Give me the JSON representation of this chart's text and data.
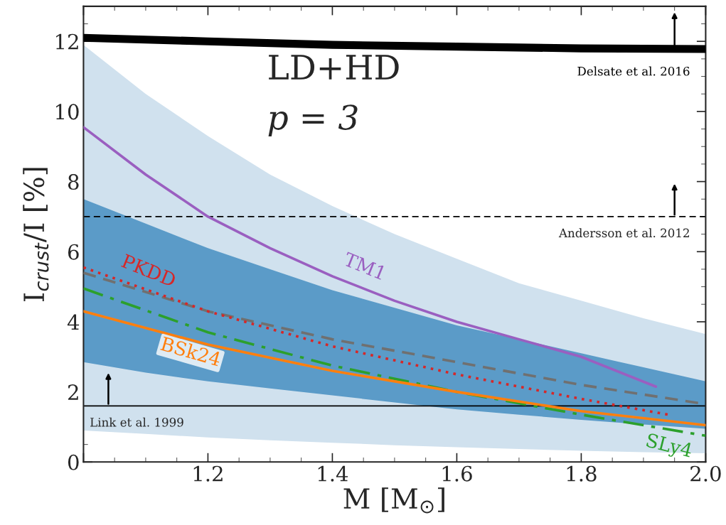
{
  "chart_data": {
    "type": "line",
    "xlabel": "M [M$_{⊙}$]",
    "ylabel": "I$_{crust}$/I [%]",
    "xlim": [
      1.0,
      2.0
    ],
    "xticks": [
      {
        "value": 1.0,
        "label": null
      },
      1.2,
      1.4,
      1.6,
      1.8,
      {
        "value": 2.0,
        "label": "2.0"
      }
    ],
    "ylim": [
      0,
      13
    ],
    "yticks": [
      0,
      2,
      4,
      6,
      8,
      10,
      12
    ],
    "grid": false,
    "legend": false,
    "series": [
      {
        "type": "area",
        "color": "#d0e1ee",
        "x": [
          1.0,
          1.1,
          1.2,
          1.3,
          1.4,
          1.5,
          1.6,
          1.7,
          1.8,
          1.9,
          2.0
        ],
        "values": [
          null,
          null,
          null,
          null,
          null,
          null,
          null,
          null,
          null,
          null,
          null
        ],
        "lower": [
          0.9,
          0.8,
          0.7,
          0.62,
          0.55,
          0.48,
          0.42,
          0.37,
          0.32,
          0.28,
          0.25
        ],
        "upper": [
          11.9,
          10.5,
          9.3,
          8.2,
          7.3,
          6.5,
          5.8,
          5.1,
          4.6,
          4.1,
          3.65
        ]
      },
      {
        "type": "area",
        "color": "#5b9bc8",
        "x": [
          1.0,
          1.1,
          1.2,
          1.3,
          1.4,
          1.5,
          1.6,
          1.7,
          1.8,
          1.9,
          2.0
        ],
        "values": [
          null,
          null,
          null,
          null,
          null,
          null,
          null,
          null,
          null,
          null,
          null
        ],
        "lower": [
          2.85,
          2.55,
          2.3,
          2.1,
          1.9,
          1.7,
          1.5,
          1.35,
          1.2,
          1.07,
          0.95
        ],
        "upper": [
          7.5,
          6.8,
          6.1,
          5.5,
          4.9,
          4.4,
          3.9,
          3.5,
          3.1,
          2.7,
          2.3
        ]
      },
      {
        "type": "line",
        "name": "Delsate et al. 2016",
        "color": "#000000",
        "line_style": "solid",
        "x": [
          1.0,
          1.2,
          1.4,
          1.6,
          1.8,
          2.0
        ],
        "values": [
          12.1,
          12.0,
          11.9,
          11.85,
          11.8,
          11.78
        ]
      },
      {
        "type": "line",
        "name": "TM1",
        "color": "#9a5fc0",
        "line_style": "solid",
        "x": [
          1.0,
          1.1,
          1.2,
          1.3,
          1.4,
          1.5,
          1.6,
          1.7,
          1.8,
          1.92
        ],
        "values": [
          9.55,
          8.2,
          7.0,
          6.1,
          5.3,
          4.6,
          4.0,
          3.5,
          3.0,
          2.15
        ]
      },
      {
        "type": "line",
        "color": "#707070",
        "line_style": "dashed",
        "x": [
          1.0,
          1.2,
          1.4,
          1.6,
          1.8,
          2.0
        ],
        "values": [
          5.4,
          4.3,
          3.5,
          2.85,
          2.2,
          1.65
        ]
      },
      {
        "type": "line",
        "name": "PKDD",
        "color": "#d62728",
        "line_style": "dotted",
        "x": [
          1.0,
          1.2,
          1.4,
          1.6,
          1.8,
          1.94
        ],
        "values": [
          5.55,
          4.3,
          3.3,
          2.5,
          1.8,
          1.35
        ]
      },
      {
        "type": "line",
        "name": "SLy4",
        "color": "#2ca02c",
        "line_style": "dashdot",
        "x": [
          1.0,
          1.2,
          1.4,
          1.6,
          1.8,
          2.0
        ],
        "values": [
          4.95,
          3.7,
          2.75,
          2.0,
          1.35,
          0.75
        ]
      },
      {
        "type": "line",
        "name": "BSk24",
        "color": "#ff7f0e",
        "line_style": "solid",
        "x": [
          1.0,
          1.2,
          1.4,
          1.6,
          1.8,
          2.0
        ],
        "values": [
          4.3,
          3.35,
          2.6,
          2.0,
          1.45,
          1.05
        ]
      }
    ],
    "ref_lines": [
      {
        "axis": "y",
        "value": 7,
        "label": "Andersson et al. 2012",
        "color": "#000000",
        "line_style": "dashed"
      },
      {
        "axis": "y",
        "value": 1.6,
        "label": "Link et al. 1999",
        "color": "#000000",
        "line_style": "solid"
      }
    ],
    "annotations": [
      "LD+HD",
      "p = 3"
    ]
  }
}
